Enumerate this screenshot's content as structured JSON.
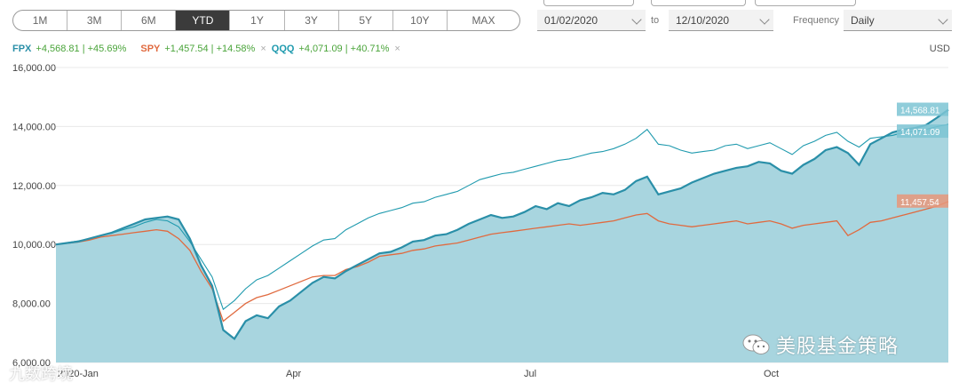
{
  "ranges": {
    "items": [
      "1M",
      "3M",
      "6M",
      "YTD",
      "1Y",
      "3Y",
      "5Y",
      "10Y",
      "MAX"
    ],
    "active": "YTD"
  },
  "date_range": {
    "from": "01/02/2020",
    "to_label": "to",
    "to": "12/10/2020"
  },
  "frequency": {
    "label": "Frequency",
    "value": "Daily"
  },
  "currency": "USD",
  "legend": [
    {
      "ticker": "FPX",
      "change": "+4,568.81 | +45.69%",
      "color": "#2a8fa8",
      "removable": false
    },
    {
      "ticker": "SPY",
      "change": "+1,457.54 | +14.58%",
      "color": "#e06a3f",
      "removable": true
    },
    {
      "ticker": "QQQ",
      "change": "+4,071.09 | +40.71%",
      "color": "#1f9aae",
      "removable": true
    }
  ],
  "watermark": {
    "main": "美股基金策略",
    "corner": "九数跨境"
  },
  "chart_data": {
    "type": "area",
    "x_tick_labels": [
      "2020-Jan",
      "Apr",
      "Jul",
      "Oct"
    ],
    "y_tick_labels": [
      "6,000.00",
      "8,000.00",
      "10,000.00",
      "12,000.00",
      "14,000.00",
      "16,000.00"
    ],
    "ylim": [
      6000,
      16000
    ],
    "grid": true,
    "legend_position": "top-left",
    "end_labels": [
      "14,568.81",
      "14,071.09",
      "11,457.54"
    ],
    "series": [
      {
        "name": "FPX",
        "color": "#2a8fa8",
        "fill": "#a8d5df",
        "values": [
          10000,
          10050,
          10100,
          10200,
          10300,
          10400,
          10550,
          10700,
          10850,
          10900,
          10950,
          10850,
          10200,
          9300,
          8600,
          7100,
          6800,
          7400,
          7600,
          7500,
          7900,
          8100,
          8400,
          8700,
          8900,
          8850,
          9100,
          9300,
          9500,
          9700,
          9750,
          9900,
          10100,
          10150,
          10300,
          10350,
          10500,
          10700,
          10850,
          11000,
          10900,
          10950,
          11100,
          11300,
          11200,
          11400,
          11300,
          11500,
          11600,
          11750,
          11700,
          11850,
          12150,
          12300,
          11700,
          11800,
          11900,
          12100,
          12250,
          12400,
          12500,
          12600,
          12650,
          12800,
          12750,
          12500,
          12400,
          12700,
          12900,
          13200,
          13300,
          13100,
          12700,
          13400,
          13600,
          13800,
          13900,
          13950,
          14050,
          14300,
          14568.81
        ]
      },
      {
        "name": "SPY",
        "values": [
          10000,
          10040,
          10080,
          10150,
          10250,
          10300,
          10350,
          10400,
          10450,
          10500,
          10450,
          10200,
          9800,
          9100,
          8500,
          7400,
          7700,
          8000,
          8200,
          8300,
          8450,
          8600,
          8750,
          8900,
          8950,
          8950,
          9150,
          9250,
          9400,
          9600,
          9650,
          9700,
          9800,
          9850,
          9950,
          10000,
          10050,
          10150,
          10250,
          10350,
          10400,
          10450,
          10500,
          10550,
          10600,
          10650,
          10700,
          10650,
          10700,
          10750,
          10800,
          10900,
          11000,
          11050,
          10800,
          10700,
          10650,
          10600,
          10650,
          10700,
          10750,
          10800,
          10700,
          10750,
          10800,
          10700,
          10550,
          10650,
          10700,
          10750,
          10800,
          10300,
          10500,
          10750,
          10800,
          10900,
          11000,
          11100,
          11200,
          11300,
          11457.54
        ]
      },
      {
        "name": "QQQ",
        "values": [
          10000,
          10060,
          10120,
          10200,
          10300,
          10380,
          10500,
          10600,
          10750,
          10850,
          10800,
          10600,
          10100,
          9500,
          8900,
          7800,
          8100,
          8500,
          8800,
          8950,
          9200,
          9450,
          9700,
          9950,
          10150,
          10200,
          10500,
          10700,
          10900,
          11050,
          11150,
          11250,
          11400,
          11450,
          11600,
          11700,
          11800,
          12000,
          12200,
          12300,
          12400,
          12450,
          12550,
          12650,
          12750,
          12850,
          12900,
          13000,
          13100,
          13150,
          13250,
          13400,
          13600,
          13900,
          13400,
          13350,
          13200,
          13100,
          13150,
          13200,
          13350,
          13400,
          13250,
          13350,
          13450,
          13250,
          13050,
          13350,
          13500,
          13700,
          13800,
          13500,
          13300,
          13600,
          13650,
          13700,
          13800,
          13850,
          13900,
          14000,
          14071.09
        ]
      }
    ]
  }
}
